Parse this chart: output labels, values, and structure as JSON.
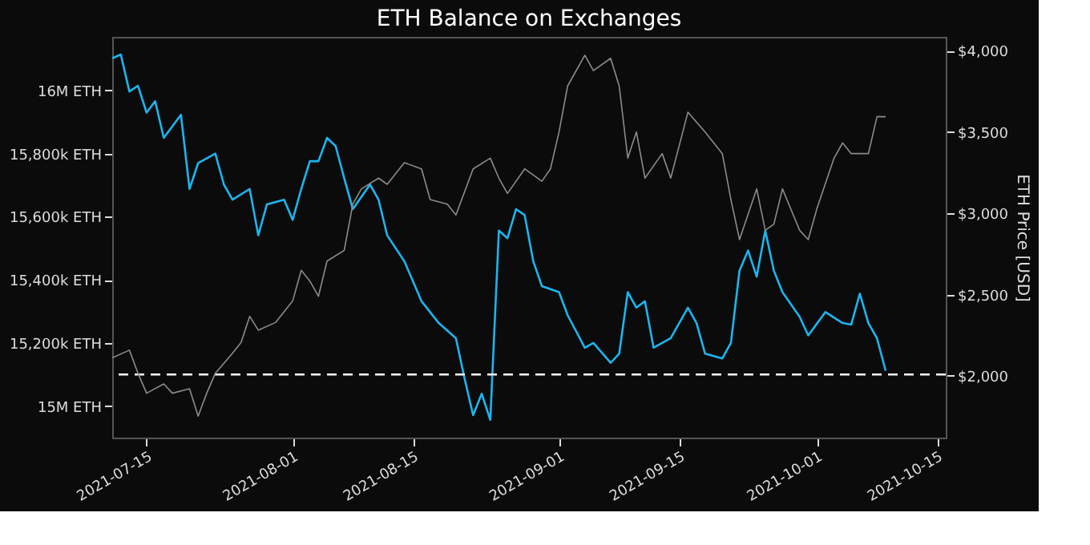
{
  "chart_data": {
    "type": "line",
    "title": "ETH Balance on Exchanges",
    "y2label": "ETH Price [USD]",
    "xlim": [
      "2021-07-11",
      "2021-10-16"
    ],
    "xticks": [
      "2021-07-15",
      "2021-08-01",
      "2021-08-15",
      "2021-09-01",
      "2021-09-15",
      "2021-10-01",
      "2021-10-15"
    ],
    "ylim": [
      14900000,
      16170000
    ],
    "yticks": [
      {
        "value": 15000000,
        "label": "15M ETH"
      },
      {
        "value": 15200000,
        "label": "15,200k ETH"
      },
      {
        "value": 15400000,
        "label": "15,400k ETH"
      },
      {
        "value": 15600000,
        "label": "15,600k ETH"
      },
      {
        "value": 15800000,
        "label": "15,800k ETH"
      },
      {
        "value": 16000000,
        "label": "16M ETH"
      }
    ],
    "y2lim": [
      1620,
      4085
    ],
    "y2ticks": [
      {
        "value": 2000,
        "label": "$2,000"
      },
      {
        "value": 2500,
        "label": "$2,500"
      },
      {
        "value": 3000,
        "label": "$3,000"
      },
      {
        "value": 3500,
        "label": "$3,500"
      },
      {
        "value": 4000,
        "label": "$4,000"
      }
    ],
    "grid": false,
    "legend": false,
    "marker": "none",
    "line_style": "solid",
    "ref_lines": [
      {
        "axis": "y",
        "value": 15100000,
        "label": null,
        "color": "#ffffff",
        "line_style": "dashed"
      }
    ],
    "series": [
      {
        "color": "#8c8c8c",
        "axis": "y2",
        "x": [
          "2021-07-11",
          "2021-07-13",
          "2021-07-14",
          "2021-07-15",
          "2021-07-17",
          "2021-07-18",
          "2021-07-20",
          "2021-07-21",
          "2021-07-22",
          "2021-07-23",
          "2021-07-25",
          "2021-07-26",
          "2021-07-27",
          "2021-07-28",
          "2021-07-30",
          "2021-08-01",
          "2021-08-02",
          "2021-08-03",
          "2021-08-04",
          "2021-08-05",
          "2021-08-07",
          "2021-08-08",
          "2021-08-09",
          "2021-08-11",
          "2021-08-12",
          "2021-08-14",
          "2021-08-16",
          "2021-08-17",
          "2021-08-19",
          "2021-08-20",
          "2021-08-22",
          "2021-08-24",
          "2021-08-25",
          "2021-08-26",
          "2021-08-28",
          "2021-08-30",
          "2021-08-31",
          "2021-09-01",
          "2021-09-02",
          "2021-09-04",
          "2021-09-05",
          "2021-09-07",
          "2021-09-08",
          "2021-09-09",
          "2021-09-10",
          "2021-09-11",
          "2021-09-13",
          "2021-09-14",
          "2021-09-16",
          "2021-09-18",
          "2021-09-20",
          "2021-09-21",
          "2021-09-22",
          "2021-09-24",
          "2021-09-25",
          "2021-09-26",
          "2021-09-27",
          "2021-09-29",
          "2021-09-30",
          "2021-10-01",
          "2021-10-03",
          "2021-10-04",
          "2021-10-05",
          "2021-10-07",
          "2021-10-08",
          "2021-10-09"
        ],
        "values": [
          2111,
          2158,
          2016,
          1893,
          1950,
          1893,
          1921,
          1752,
          1893,
          2016,
          2139,
          2205,
          2366,
          2281,
          2328,
          2460,
          2649,
          2583,
          2489,
          2706,
          2772,
          3056,
          3150,
          3216,
          3178,
          3311,
          3273,
          3084,
          3056,
          2989,
          3273,
          3339,
          3216,
          3122,
          3273,
          3197,
          3273,
          3500,
          3783,
          3972,
          3877,
          3953,
          3783,
          3339,
          3500,
          3216,
          3367,
          3216,
          3622,
          3500,
          3367,
          3084,
          2838,
          3150,
          2895,
          2933,
          3150,
          2895,
          2838,
          3027,
          3339,
          3433,
          3367,
          3367,
          3594,
          3594
        ]
      },
      {
        "color": "#1ab6f0",
        "axis": "y",
        "x": [
          "2021-07-11",
          "2021-07-12",
          "2021-07-13",
          "2021-07-14",
          "2021-07-15",
          "2021-07-16",
          "2021-07-17",
          "2021-07-19",
          "2021-07-20",
          "2021-07-21",
          "2021-07-23",
          "2021-07-24",
          "2021-07-25",
          "2021-07-27",
          "2021-07-28",
          "2021-07-29",
          "2021-07-31",
          "2021-08-01",
          "2021-08-02",
          "2021-08-03",
          "2021-08-04",
          "2021-08-05",
          "2021-08-06",
          "2021-08-07",
          "2021-08-08",
          "2021-08-10",
          "2021-08-11",
          "2021-08-12",
          "2021-08-14",
          "2021-08-16",
          "2021-08-18",
          "2021-08-20",
          "2021-08-21",
          "2021-08-22",
          "2021-08-23",
          "2021-08-24",
          "2021-08-25",
          "2021-08-26",
          "2021-08-27",
          "2021-08-28",
          "2021-08-29",
          "2021-08-30",
          "2021-09-01",
          "2021-09-02",
          "2021-09-04",
          "2021-09-05",
          "2021-09-07",
          "2021-09-08",
          "2021-09-09",
          "2021-09-10",
          "2021-09-11",
          "2021-09-12",
          "2021-09-14",
          "2021-09-16",
          "2021-09-17",
          "2021-09-18",
          "2021-09-20",
          "2021-09-21",
          "2021-09-22",
          "2021-09-23",
          "2021-09-24",
          "2021-09-25",
          "2021-09-26",
          "2021-09-27",
          "2021-09-29",
          "2021-09-30",
          "2021-10-02",
          "2021-10-04",
          "2021-10-05",
          "2021-10-06",
          "2021-10-07",
          "2021-10-08",
          "2021-10-09"
        ],
        "values": [
          16102000,
          16114000,
          15997000,
          16015000,
          15930000,
          15966000,
          15850000,
          15923000,
          15688000,
          15770000,
          15800000,
          15702000,
          15654000,
          15688000,
          15541000,
          15639000,
          15654000,
          15590000,
          15688000,
          15776000,
          15776000,
          15850000,
          15824000,
          15722000,
          15624000,
          15702000,
          15654000,
          15541000,
          15459000,
          15332000,
          15263000,
          15215000,
          15088000,
          14971000,
          15039000,
          14956000,
          15556000,
          15532000,
          15624000,
          15605000,
          15459000,
          15380000,
          15361000,
          15288000,
          15185000,
          15200000,
          15137000,
          15166000,
          15361000,
          15312000,
          15332000,
          15185000,
          15215000,
          15312000,
          15263000,
          15166000,
          15151000,
          15200000,
          15429000,
          15493000,
          15410000,
          15556000,
          15429000,
          15361000,
          15283000,
          15224000,
          15298000,
          15263000,
          15258000,
          15356000,
          15263000,
          15215000,
          15112000
        ]
      }
    ]
  }
}
